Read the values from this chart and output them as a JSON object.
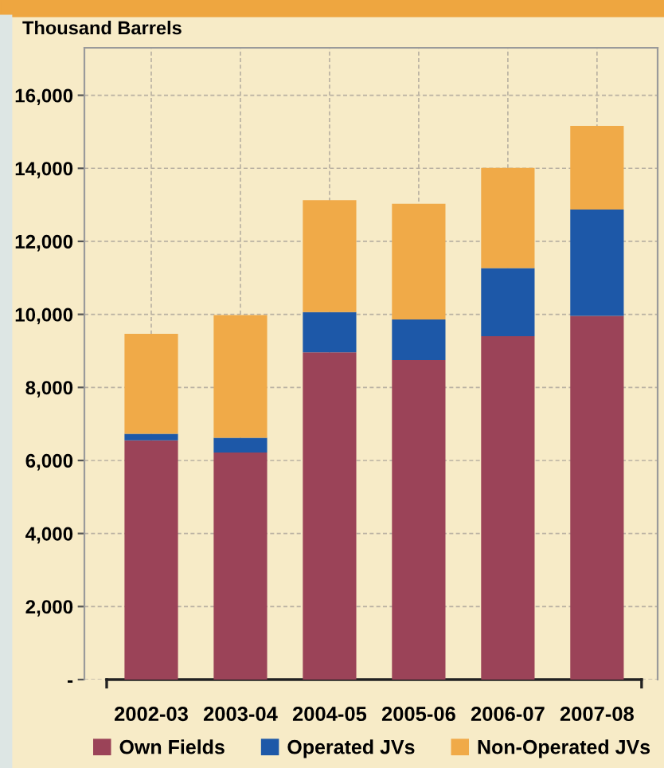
{
  "chart_data": {
    "type": "bar",
    "ylabel": "Thousand Barrels",
    "categories": [
      "2002-03",
      "2003-04",
      "2004-05",
      "2005-06",
      "2006-07",
      "2007-08"
    ],
    "stacked": true,
    "series": [
      {
        "name": "Own Fields",
        "color": "#9b4358",
        "values": [
          6550,
          6220,
          8960,
          8750,
          9400,
          9960
        ]
      },
      {
        "name": "Operated JVs",
        "color": "#1d58a8",
        "values": [
          180,
          400,
          1100,
          1110,
          1870,
          2910
        ]
      },
      {
        "name": "Non-Operated JVs",
        "color": "#f0aa48",
        "values": [
          2740,
          3360,
          3070,
          3170,
          2740,
          2290
        ]
      }
    ],
    "ylim": [
      0,
      17300
    ],
    "yticks": [
      {
        "value": 0,
        "label": "-"
      },
      {
        "value": 2000,
        "label": "2,000"
      },
      {
        "value": 4000,
        "label": "4,000"
      },
      {
        "value": 6000,
        "label": "6,000"
      },
      {
        "value": 8000,
        "label": "8,000"
      },
      {
        "value": 10000,
        "label": "10,000"
      },
      {
        "value": 12000,
        "label": "12,000"
      },
      {
        "value": 14000,
        "label": "14,000"
      },
      {
        "value": 16000,
        "label": "16,000"
      }
    ],
    "grid": true,
    "legend": "bottom"
  }
}
